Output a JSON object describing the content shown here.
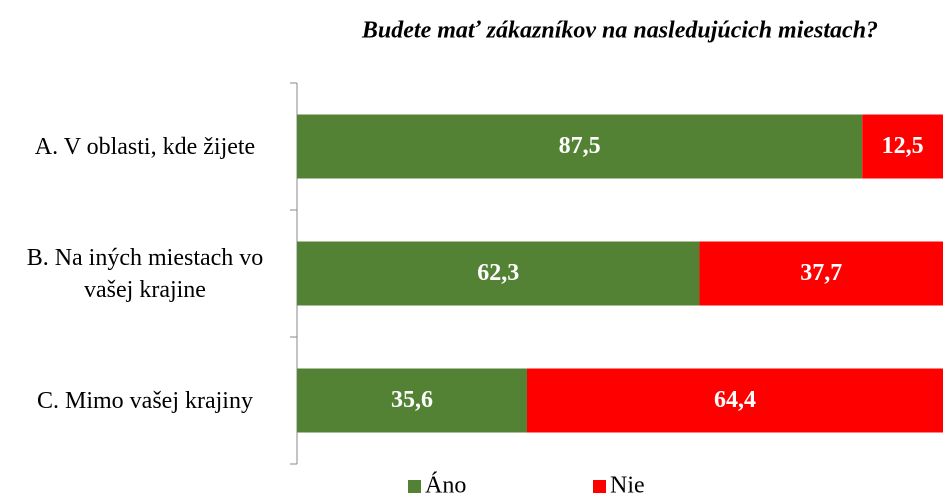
{
  "chart_data": {
    "type": "stacked_bar_horizontal",
    "title": "Budete mať zákazníkov na nasledujúcich miestach?",
    "categories": [
      "A. V oblasti, kde žijete",
      "B. Na iných miestach vo vašej krajine",
      "C. Mimo vašej krajiny"
    ],
    "series": [
      {
        "name": "Áno",
        "color": "#548235",
        "values": [
          87.5,
          62.3,
          35.6
        ],
        "value_labels": [
          "87,5",
          "62,3",
          "35,6"
        ]
      },
      {
        "name": "Nie",
        "color": "#ff0000",
        "values": [
          12.5,
          37.7,
          64.4
        ],
        "value_labels": [
          "12,5",
          "37,7",
          "64,4"
        ]
      }
    ],
    "xlim": [
      0,
      100
    ],
    "legend": "bottom"
  }
}
